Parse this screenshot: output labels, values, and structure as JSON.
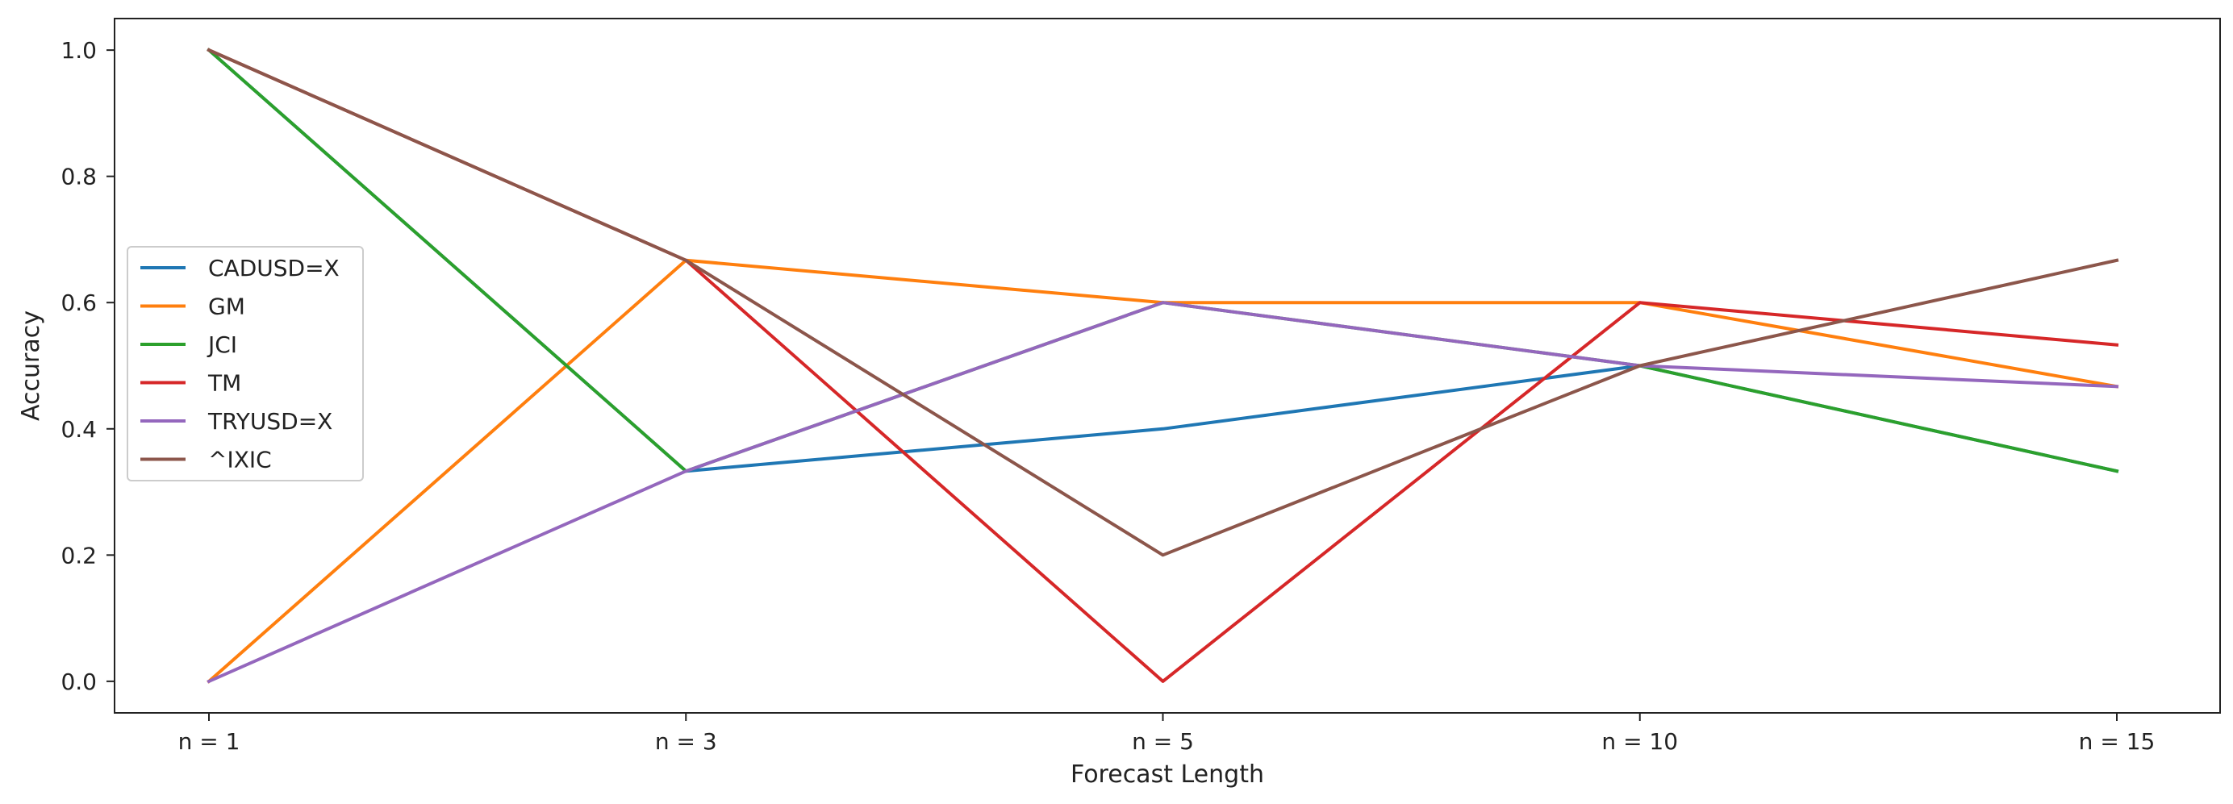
{
  "chart_data": {
    "type": "line",
    "categories": [
      "n = 1",
      "n = 3",
      "n = 5",
      "n = 10",
      "n = 15"
    ],
    "ylim": [
      -0.05,
      1.05
    ],
    "yticks": [
      0.0,
      0.2,
      0.4,
      0.6,
      0.8,
      1.0
    ],
    "ytick_labels": [
      "0.0",
      "0.2",
      "0.4",
      "0.6",
      "0.8",
      "1.0"
    ],
    "xlabel": "Forecast Length",
    "ylabel": "Accuracy",
    "grid": false,
    "legend_position": "center-left",
    "series": [
      {
        "name": "CADUSD=X",
        "color": "#1f77b4",
        "values": [
          1.0,
          0.333,
          0.4,
          0.5,
          0.333
        ]
      },
      {
        "name": "GM",
        "color": "#ff7f0e",
        "values": [
          0.0,
          0.667,
          0.6,
          0.6,
          0.467
        ]
      },
      {
        "name": "JCI",
        "color": "#2ca02c",
        "values": [
          1.0,
          0.333,
          0.6,
          0.5,
          0.333
        ]
      },
      {
        "name": "TM",
        "color": "#d62728",
        "values": [
          1.0,
          0.667,
          0.0,
          0.6,
          0.533
        ]
      },
      {
        "name": "TRYUSD=X",
        "color": "#9467bd",
        "values": [
          0.0,
          0.333,
          0.6,
          0.5,
          0.467
        ]
      },
      {
        "name": "^IXIC",
        "color": "#8c564b",
        "values": [
          1.0,
          0.667,
          0.2,
          0.5,
          0.667
        ]
      }
    ]
  }
}
